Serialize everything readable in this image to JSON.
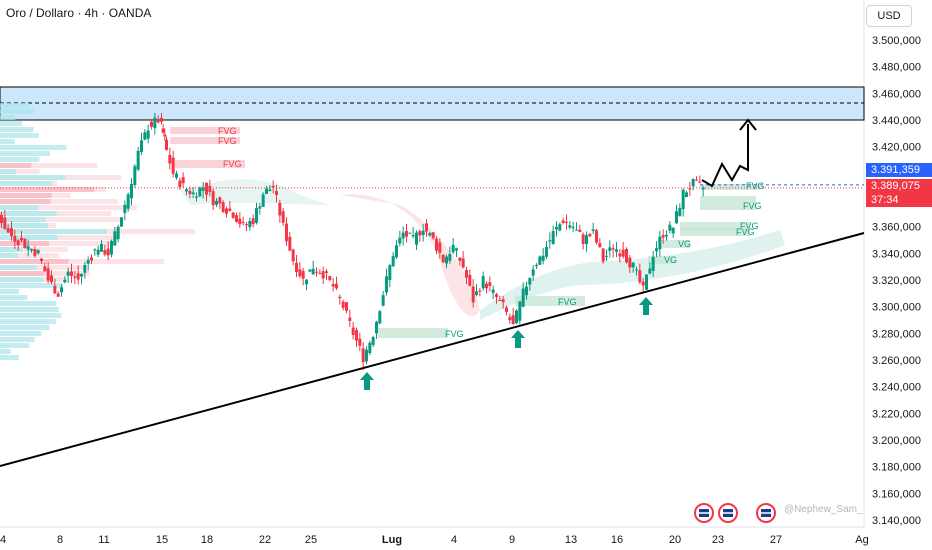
{
  "header": {
    "title": "Oro / Dollaro · 4h · OANDA",
    "currency": "USD"
  },
  "price_tags": {
    "current_price": "3.391,359",
    "last_price": "3.389,075",
    "countdown": "37:34"
  },
  "watermark": "@Nephew_Sam_",
  "colors": {
    "up": "#089981",
    "down": "#f23645",
    "zone_fill": "#bbdefb",
    "fvg_down": "#f7c8cd",
    "fvg_up": "#c8e6d4",
    "trendline": "#000000"
  },
  "chart_data": {
    "type": "candlestick",
    "y_axis": {
      "min": 3130000,
      "max": 3510000,
      "ticks": [
        "3.500,000",
        "3.480,000",
        "3.460,000",
        "3.440,000",
        "3.420,000",
        "3.400,000",
        "3.380,000",
        "3.360,000",
        "3.340,000",
        "3.320,000",
        "3.300,000",
        "3.280,000",
        "3.260,000",
        "3.240,000",
        "3.220,000",
        "3.200,000",
        "3.180,000",
        "3.160,000",
        "3.140,000"
      ]
    },
    "x_axis": {
      "ticks": [
        "4",
        "8",
        "11",
        "15",
        "18",
        "22",
        "25",
        "Lug",
        "4",
        "9",
        "13",
        "16",
        "20",
        "23",
        "27",
        "Ag"
      ]
    },
    "fvg_labels_down": [
      "FVG",
      "FVG",
      "FVG"
    ],
    "fvg_labels_up": [
      "FVG",
      "FVG",
      "FVG",
      "FVG",
      "FVG",
      "VG",
      "VG",
      "FVG"
    ],
    "annotations": [
      "support-arrow",
      "support-arrow",
      "support-arrow",
      "projection-arrow"
    ]
  }
}
